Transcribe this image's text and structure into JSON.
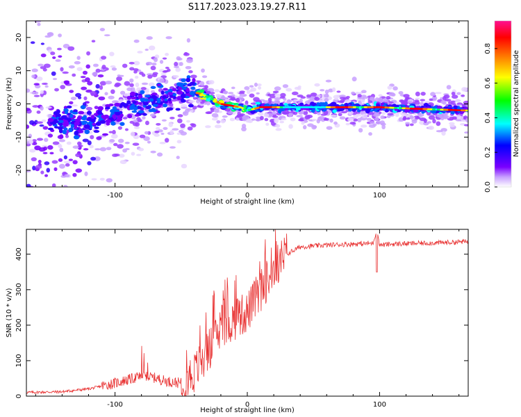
{
  "title": "S117.2023.023.19.27.R11",
  "chart_data": [
    {
      "type": "heatmap",
      "xlabel": "Height of straight line (km)",
      "ylabel": "Frequency (Hz)",
      "xlim": [
        -167,
        167
      ],
      "ylim": [
        -25,
        25
      ],
      "x_ticks": [
        -100,
        0,
        100
      ],
      "x_tick_labels": [
        "-100",
        "0",
        "100"
      ],
      "y_ticks": [
        -20,
        -10,
        0,
        10,
        20
      ],
      "y_tick_labels": [
        "-20",
        "-10",
        "0",
        "10",
        "20"
      ],
      "colorbar": {
        "label": "Normalized spectral amplitude",
        "range": [
          0,
          0.96
        ],
        "ticks": [
          0,
          0.2,
          0.4,
          0.6,
          0.8
        ],
        "tick_labels": [
          "0.0",
          "0.2",
          "0.4",
          "0.6",
          "0.8"
        ],
        "colormap": [
          "#ffffff",
          "#7a00ff",
          "#0000ff",
          "#00ffff",
          "#00ff00",
          "#ffff00",
          "#ff8000",
          "#ff0000",
          "#ff0080"
        ]
      },
      "ridge": {
        "x": [
          -135,
          -120,
          -105,
          -90,
          -75,
          -60,
          -45,
          -35,
          -20,
          -5,
          0,
          10,
          30,
          60,
          80,
          100,
          130,
          167
        ],
        "y": [
          -5,
          -6,
          -4,
          -1,
          1,
          2,
          4,
          3,
          0,
          -1,
          -2,
          -1,
          -1,
          -1,
          -1,
          -1,
          -1.5,
          -2
        ]
      }
    },
    {
      "type": "line",
      "xlabel": "Height of straight line (km)",
      "ylabel": "SNR (10 * v/v)",
      "xlim": [
        -167,
        167
      ],
      "ylim": [
        0,
        470
      ],
      "x_ticks": [
        -100,
        0,
        100
      ],
      "x_tick_labels": [
        "-100",
        "0",
        "100"
      ],
      "y_ticks": [
        0,
        100,
        200,
        300,
        400
      ],
      "y_tick_labels": [
        "0",
        "100",
        "200",
        "300",
        "400"
      ],
      "series": [
        {
          "color": "#e83030",
          "x": [
            -167,
            -140,
            -120,
            -100,
            -90,
            -80,
            -70,
            -60,
            -50,
            -40,
            -30,
            -20,
            -10,
            0,
            10,
            20,
            30,
            40,
            60,
            80,
            95,
            98,
            100,
            110,
            130,
            150,
            167
          ],
          "y": [
            10,
            12,
            20,
            35,
            45,
            55,
            50,
            40,
            35,
            60,
            120,
            180,
            210,
            230,
            290,
            350,
            400,
            420,
            425,
            428,
            430,
            470,
            425,
            428,
            430,
            432,
            435
          ]
        }
      ]
    }
  ]
}
